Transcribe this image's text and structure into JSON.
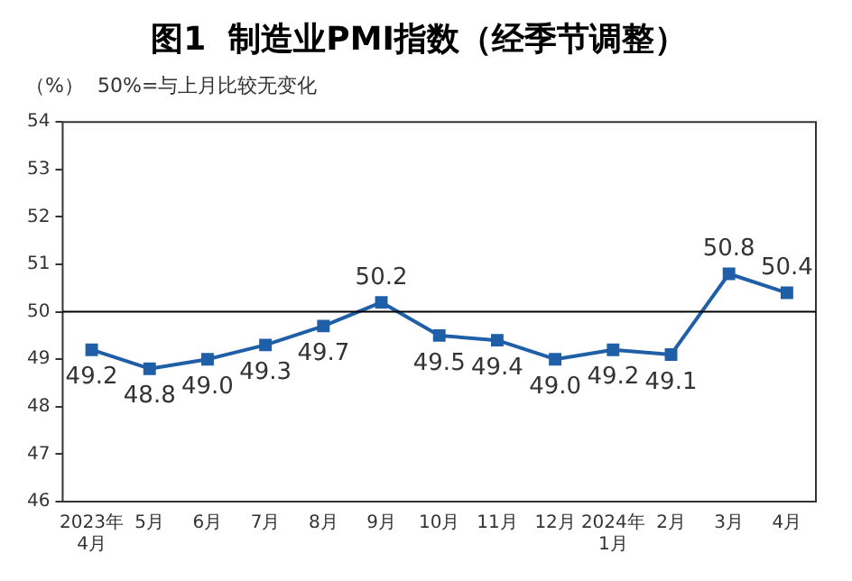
{
  "chart_data": {
    "type": "line",
    "title": "图1  制造业PMI指数（经季节调整）",
    "ylabel": "（%）",
    "annotations": [
      "50%=与上月比较无变化"
    ],
    "categories": [
      "2023年\n4月",
      "5月",
      "6月",
      "7月",
      "8月",
      "9月",
      "10月",
      "11月",
      "12月",
      "2024年\n1月",
      "2月",
      "3月",
      "4月"
    ],
    "series": [
      {
        "color": "#1f5fa8",
        "values": [
          49.2,
          48.8,
          49.0,
          49.3,
          49.7,
          50.2,
          49.5,
          49.4,
          49.0,
          49.2,
          49.1,
          50.8,
          50.4
        ]
      }
    ],
    "value_labels": [
      "49.2",
      "48.8",
      "49.0",
      "49.3",
      "49.7",
      "50.2",
      "49.5",
      "49.4",
      "49.0",
      "49.2",
      "49.1",
      "50.8",
      "50.4"
    ],
    "ylim": [
      46,
      54
    ],
    "yticks": [
      46,
      47,
      48,
      49,
      50,
      51,
      52,
      53,
      54
    ],
    "ref_lines": [
      {
        "axis": "y",
        "value": 50,
        "color": "#000000"
      }
    ],
    "marker": "square",
    "line_style": "solid",
    "grid": false,
    "legend": false
  }
}
